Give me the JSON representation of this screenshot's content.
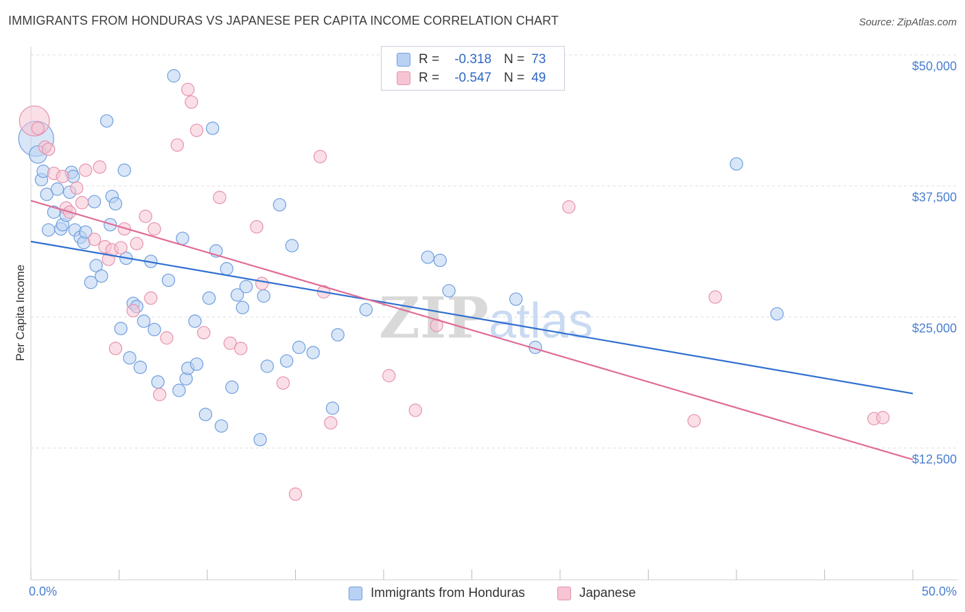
{
  "header": {
    "title": "IMMIGRANTS FROM HONDURAS VS JAPANESE PER CAPITA INCOME CORRELATION CHART",
    "source": "Source: ZipAtlas.com"
  },
  "legend": {
    "rows": [
      {
        "r_label": "R =",
        "r_value": "-0.318",
        "n_label": "N =",
        "n_value": "73"
      },
      {
        "r_label": "R =",
        "r_value": "-0.547",
        "n_label": "N =",
        "n_value": "49"
      }
    ]
  },
  "watermark": {
    "zip": "ZIP",
    "atlas": "atlas"
  },
  "colors": {
    "blue_fill": "#b9d1f3",
    "blue_stroke": "#6d9ede",
    "blue_line": "#2f6fd0",
    "pink_fill": "#f7c4d4",
    "pink_stroke": "#e592ad",
    "pink_line": "#e06b96",
    "tick_text": "#4a7fd0",
    "grid": "#dedede"
  },
  "chart_data": {
    "type": "scatter",
    "title": "IMMIGRANTS FROM HONDURAS VS JAPANESE PER CAPITA INCOME CORRELATION CHART",
    "xlabel": "",
    "ylabel": "Per Capita Income",
    "xlim": [
      0,
      50
    ],
    "ylim": [
      0,
      50000
    ],
    "x_tick_labels": [
      "0.0%",
      "50.0%"
    ],
    "y_ticks": [
      12500,
      25000,
      37500,
      50000
    ],
    "y_tick_labels": [
      "$12,500",
      "$25,000",
      "$37,500",
      "$50,000"
    ],
    "grid": true,
    "legend_position": "top-center",
    "series": [
      {
        "name": "Immigrants from Honduras",
        "color": "#6d9ede",
        "points": [
          [
            0.3,
            42000,
            28
          ],
          [
            0.4,
            40500,
            14
          ],
          [
            0.6,
            38100,
            10
          ],
          [
            0.7,
            38900,
            10
          ],
          [
            0.9,
            36700,
            10
          ],
          [
            1.0,
            33300,
            10
          ],
          [
            1.3,
            35000,
            10
          ],
          [
            1.5,
            37200,
            10
          ],
          [
            1.7,
            33400,
            10
          ],
          [
            1.8,
            33800,
            10
          ],
          [
            2.0,
            34700,
            10
          ],
          [
            2.2,
            36900,
            10
          ],
          [
            2.3,
            38800,
            10
          ],
          [
            2.4,
            38400,
            10
          ],
          [
            2.5,
            33300,
            10
          ],
          [
            2.8,
            32600,
            10
          ],
          [
            3.0,
            32100,
            10
          ],
          [
            3.1,
            33100,
            10
          ],
          [
            3.4,
            28300,
            10
          ],
          [
            3.6,
            36000,
            10
          ],
          [
            3.7,
            29900,
            10
          ],
          [
            4.0,
            28900,
            10
          ],
          [
            4.3,
            43700,
            10
          ],
          [
            4.5,
            33800,
            10
          ],
          [
            4.6,
            36500,
            10
          ],
          [
            4.8,
            35800,
            10
          ],
          [
            5.1,
            23900,
            10
          ],
          [
            5.3,
            39000,
            10
          ],
          [
            5.4,
            30600,
            10
          ],
          [
            5.6,
            21100,
            10
          ],
          [
            5.8,
            26300,
            10
          ],
          [
            6.0,
            26000,
            10
          ],
          [
            6.2,
            20200,
            10
          ],
          [
            6.4,
            24600,
            10
          ],
          [
            6.8,
            30300,
            10
          ],
          [
            7.0,
            23800,
            10
          ],
          [
            7.2,
            18800,
            10
          ],
          [
            7.8,
            28500,
            10
          ],
          [
            8.1,
            48000,
            10
          ],
          [
            8.4,
            18000,
            10
          ],
          [
            8.6,
            32500,
            10
          ],
          [
            8.8,
            19100,
            10
          ],
          [
            8.9,
            20100,
            10
          ],
          [
            9.3,
            24600,
            10
          ],
          [
            9.4,
            20500,
            10
          ],
          [
            9.9,
            15700,
            10
          ],
          [
            10.1,
            26800,
            10
          ],
          [
            10.3,
            43000,
            10
          ],
          [
            10.5,
            31300,
            10
          ],
          [
            10.8,
            14600,
            10
          ],
          [
            11.1,
            29600,
            10
          ],
          [
            11.4,
            18300,
            10
          ],
          [
            11.7,
            27100,
            10
          ],
          [
            12.0,
            25900,
            10
          ],
          [
            12.2,
            27900,
            10
          ],
          [
            13.0,
            13300,
            10
          ],
          [
            13.2,
            27000,
            10
          ],
          [
            13.4,
            20300,
            10
          ],
          [
            14.1,
            35700,
            10
          ],
          [
            14.5,
            20800,
            10
          ],
          [
            14.8,
            31800,
            10
          ],
          [
            15.2,
            22100,
            10
          ],
          [
            16.0,
            21600,
            10
          ],
          [
            17.1,
            16300,
            10
          ],
          [
            17.4,
            23300,
            10
          ],
          [
            19.0,
            25700,
            10
          ],
          [
            22.5,
            30700,
            10
          ],
          [
            23.2,
            30400,
            10
          ],
          [
            23.7,
            27500,
            10
          ],
          [
            27.5,
            26700,
            10
          ],
          [
            28.6,
            22100,
            10
          ],
          [
            40.0,
            39600,
            10
          ],
          [
            42.3,
            25300,
            10
          ]
        ],
        "trend": {
          "x": [
            0,
            50
          ],
          "y": [
            32200,
            17700
          ]
        }
      },
      {
        "name": "Japanese",
        "color": "#e592ad",
        "points": [
          [
            0.2,
            43700,
            24
          ],
          [
            0.4,
            43000,
            10
          ],
          [
            0.8,
            41200,
            10
          ],
          [
            1.0,
            41000,
            10
          ],
          [
            1.3,
            38700,
            10
          ],
          [
            1.8,
            38400,
            10
          ],
          [
            2.0,
            35400,
            10
          ],
          [
            2.2,
            35000,
            10
          ],
          [
            2.6,
            37300,
            10
          ],
          [
            2.9,
            35900,
            10
          ],
          [
            3.1,
            39000,
            10
          ],
          [
            3.6,
            32400,
            10
          ],
          [
            3.9,
            39300,
            10
          ],
          [
            4.2,
            31700,
            10
          ],
          [
            4.4,
            30500,
            10
          ],
          [
            4.6,
            31400,
            10
          ],
          [
            4.8,
            22000,
            10
          ],
          [
            5.1,
            31600,
            10
          ],
          [
            5.3,
            33400,
            10
          ],
          [
            5.8,
            25600,
            10
          ],
          [
            6.0,
            32000,
            10
          ],
          [
            6.5,
            34600,
            10
          ],
          [
            6.8,
            26800,
            10
          ],
          [
            7.0,
            33400,
            10
          ],
          [
            7.3,
            17600,
            10
          ],
          [
            7.7,
            23000,
            10
          ],
          [
            8.3,
            41400,
            10
          ],
          [
            8.9,
            46700,
            10
          ],
          [
            9.1,
            45500,
            10
          ],
          [
            9.4,
            42800,
            10
          ],
          [
            9.8,
            23500,
            10
          ],
          [
            10.7,
            36400,
            10
          ],
          [
            11.3,
            22500,
            10
          ],
          [
            11.9,
            22000,
            10
          ],
          [
            12.8,
            33600,
            10
          ],
          [
            13.1,
            28200,
            10
          ],
          [
            14.3,
            18700,
            10
          ],
          [
            15.0,
            8100,
            10
          ],
          [
            16.4,
            40300,
            10
          ],
          [
            16.6,
            27400,
            10
          ],
          [
            17.0,
            14900,
            10
          ],
          [
            20.3,
            19400,
            10
          ],
          [
            21.8,
            16100,
            10
          ],
          [
            23.0,
            24200,
            10
          ],
          [
            30.5,
            35500,
            10
          ],
          [
            37.6,
            15100,
            10
          ],
          [
            38.8,
            26900,
            10
          ],
          [
            47.8,
            15300,
            10
          ],
          [
            48.3,
            15400,
            10
          ]
        ],
        "trend": {
          "x": [
            0,
            50
          ],
          "y": [
            36100,
            11400
          ]
        }
      }
    ]
  },
  "bottom_legend": {
    "series1": "Immigrants from Honduras",
    "series2": "Japanese"
  }
}
